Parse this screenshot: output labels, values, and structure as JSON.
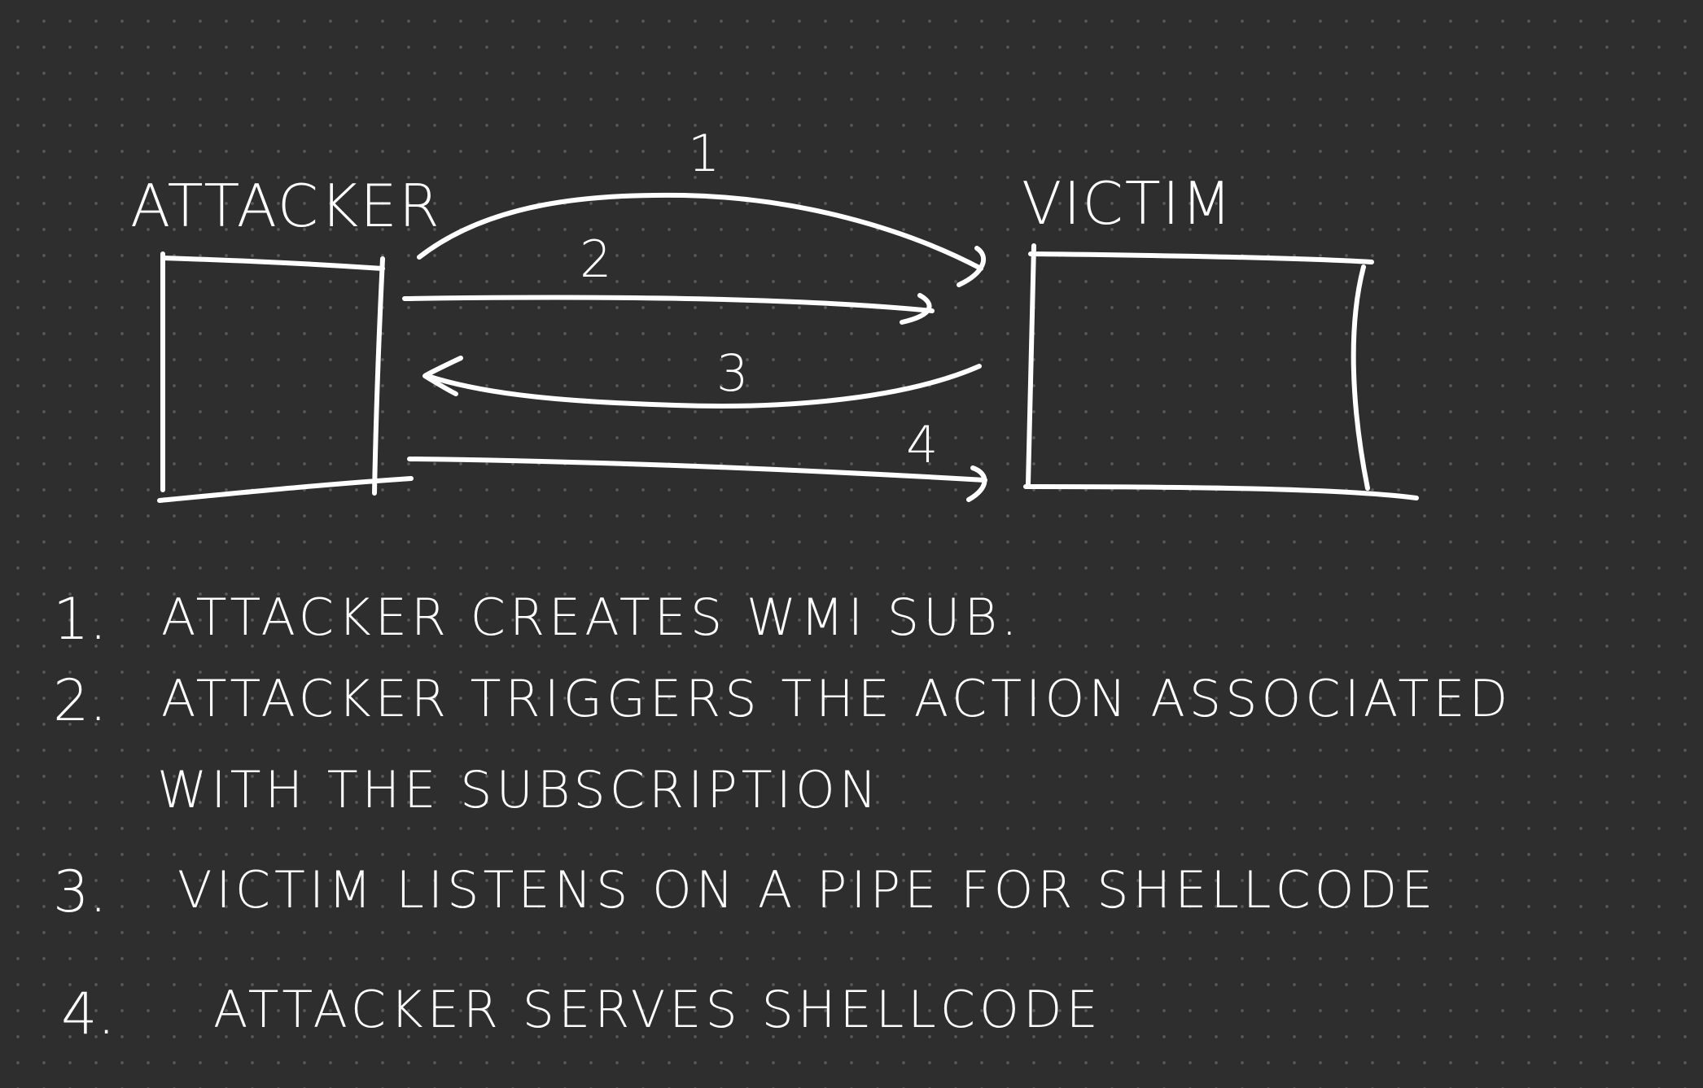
{
  "nodes": {
    "attacker": {
      "label": "ATTACKER"
    },
    "victim": {
      "label": "VICTIM"
    }
  },
  "arrows": [
    {
      "number": "1",
      "from": "attacker",
      "to": "victim"
    },
    {
      "number": "2",
      "from": "attacker",
      "to": "victim"
    },
    {
      "number": "3",
      "from": "victim",
      "to": "attacker"
    },
    {
      "number": "4",
      "from": "attacker",
      "to": "victim"
    }
  ],
  "steps": [
    {
      "number": "1.",
      "lines": [
        "ATTACKER CREATES WMI SUB."
      ]
    },
    {
      "number": "2.",
      "lines": [
        "ATTACKER TRIGGERS THE ACTION ASSOCIATED",
        "WITH THE SUBSCRIPTION"
      ]
    },
    {
      "number": "3.",
      "lines": [
        "VICTIM LISTENS ON A PIPE FOR SHELLCODE"
      ]
    },
    {
      "number": "4.",
      "lines": [
        "ATTACKER SERVES SHELLCODE"
      ]
    }
  ]
}
